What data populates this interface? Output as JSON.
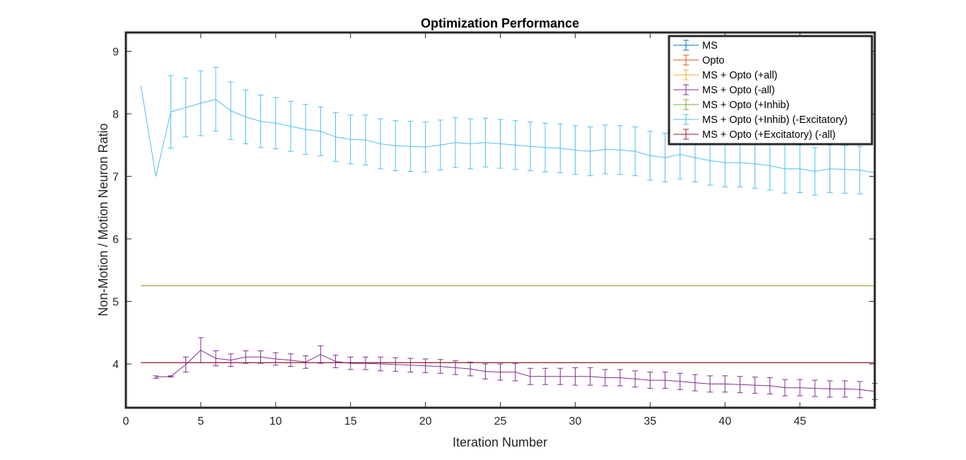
{
  "chart_data": {
    "type": "line",
    "title": "Optimization Performance",
    "xlabel": "Iteration Number",
    "ylabel": "Non-Motion / Motion Neuron Ratio",
    "xlim": [
      0,
      50
    ],
    "ylim": [
      3.3,
      9.3
    ],
    "xticks": [
      0,
      5,
      10,
      15,
      20,
      25,
      30,
      35,
      40,
      45
    ],
    "yticks": [
      4,
      5,
      6,
      7,
      8,
      9
    ],
    "grid": false,
    "legend_position": "top-right",
    "series": [
      {
        "name": "MS",
        "color": "#0072BD",
        "x": [
          1,
          50
        ],
        "y": [
          4.02,
          4.02
        ],
        "err": [
          0,
          0
        ]
      },
      {
        "name": "Opto",
        "color": "#D95319",
        "x": [
          1,
          50
        ],
        "y": [
          4.02,
          4.02
        ],
        "err": [
          0,
          0
        ]
      },
      {
        "name": "MS + Opto (+all)",
        "color": "#EDB120",
        "x": [
          1,
          50
        ],
        "y": [
          5.25,
          5.25
        ],
        "err": [
          0,
          0
        ]
      },
      {
        "name": "MS + Opto (-all)",
        "color": "#7E2F8E",
        "x": [
          2,
          3,
          4,
          5,
          6,
          7,
          8,
          9,
          10,
          11,
          12,
          13,
          14,
          15,
          16,
          17,
          18,
          19,
          20,
          21,
          22,
          23,
          24,
          25,
          26,
          27,
          28,
          29,
          30,
          31,
          32,
          33,
          34,
          35,
          36,
          37,
          38,
          39,
          40,
          41,
          42,
          43,
          44,
          45,
          46,
          47,
          48,
          49,
          50
        ],
        "y": [
          3.79,
          3.8,
          3.99,
          4.22,
          4.09,
          4.06,
          4.11,
          4.11,
          4.08,
          4.06,
          4.03,
          4.15,
          4.04,
          4.01,
          4.01,
          4.0,
          3.99,
          3.98,
          3.97,
          3.96,
          3.94,
          3.92,
          3.88,
          3.87,
          3.87,
          3.8,
          3.8,
          3.8,
          3.8,
          3.8,
          3.78,
          3.78,
          3.76,
          3.74,
          3.74,
          3.72,
          3.7,
          3.68,
          3.68,
          3.67,
          3.66,
          3.65,
          3.62,
          3.62,
          3.61,
          3.6,
          3.6,
          3.59,
          3.56
        ],
        "err": [
          0.02,
          0.01,
          0.12,
          0.2,
          0.12,
          0.1,
          0.1,
          0.1,
          0.1,
          0.1,
          0.1,
          0.14,
          0.1,
          0.1,
          0.1,
          0.11,
          0.11,
          0.11,
          0.11,
          0.11,
          0.11,
          0.11,
          0.12,
          0.13,
          0.14,
          0.13,
          0.13,
          0.13,
          0.14,
          0.14,
          0.13,
          0.13,
          0.13,
          0.13,
          0.13,
          0.13,
          0.13,
          0.13,
          0.13,
          0.13,
          0.13,
          0.13,
          0.13,
          0.13,
          0.13,
          0.13,
          0.13,
          0.13,
          0.13
        ]
      },
      {
        "name": "MS + Opto (+Inhib)",
        "color": "#77AC30",
        "x": [
          1,
          50
        ],
        "y": [
          5.25,
          5.25
        ],
        "err": [
          0,
          0
        ]
      },
      {
        "name": "MS + Opto (+Inhib) (-Excitatory)",
        "color": "#4DBEEE",
        "x": [
          1,
          2,
          3,
          4,
          5,
          6,
          7,
          8,
          9,
          10,
          11,
          12,
          13,
          14,
          15,
          16,
          17,
          18,
          19,
          20,
          21,
          22,
          23,
          24,
          25,
          26,
          27,
          28,
          29,
          30,
          31,
          32,
          33,
          34,
          35,
          36,
          37,
          38,
          39,
          40,
          41,
          42,
          43,
          44,
          45,
          46,
          47,
          48,
          49,
          50
        ],
        "y": [
          8.45,
          7.0,
          8.03,
          8.1,
          8.17,
          8.23,
          8.05,
          7.95,
          7.88,
          7.85,
          7.8,
          7.75,
          7.72,
          7.63,
          7.59,
          7.58,
          7.52,
          7.49,
          7.48,
          7.47,
          7.5,
          7.54,
          7.52,
          7.54,
          7.52,
          7.5,
          7.48,
          7.46,
          7.45,
          7.42,
          7.4,
          7.43,
          7.42,
          7.4,
          7.33,
          7.3,
          7.35,
          7.3,
          7.25,
          7.22,
          7.22,
          7.2,
          7.17,
          7.12,
          7.12,
          7.08,
          7.12,
          7.11,
          7.1,
          7.06
        ],
        "err": [
          0,
          0,
          0.58,
          0.47,
          0.52,
          0.51,
          0.46,
          0.43,
          0.42,
          0.41,
          0.4,
          0.4,
          0.39,
          0.39,
          0.39,
          0.4,
          0.4,
          0.4,
          0.4,
          0.4,
          0.4,
          0.4,
          0.4,
          0.39,
          0.39,
          0.39,
          0.39,
          0.39,
          0.39,
          0.39,
          0.39,
          0.39,
          0.39,
          0.39,
          0.39,
          0.39,
          0.39,
          0.39,
          0.39,
          0.39,
          0.39,
          0.39,
          0.39,
          0.39,
          0.38,
          0.38,
          0.38,
          0.38,
          0.38,
          0
        ]
      },
      {
        "name": "MS + Opto (+Excitatory) (-all)",
        "color": "#A2142F",
        "x": [
          1,
          50
        ],
        "y": [
          4.02,
          4.02
        ],
        "err": [
          0,
          0
        ]
      }
    ]
  }
}
